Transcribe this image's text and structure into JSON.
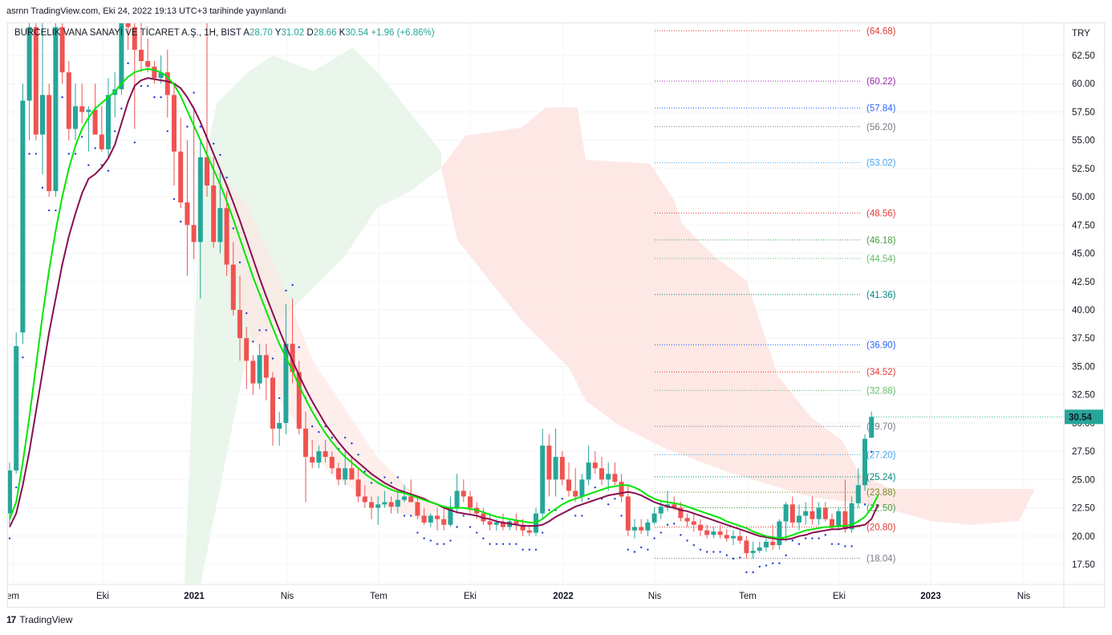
{
  "header": {
    "publish_line": "asrnn TradingView.com, Eki 24, 2022 19:13 UTC+3 tarihinde yayınlandı"
  },
  "legend": {
    "symbol": "BURCELIK VANA SANAYİ VE TİCARET A.Ş., 1H, BIST",
    "open_label": "A",
    "open": "28.70",
    "high_label": "Y",
    "high": "31.02",
    "low_label": "D",
    "low": "28.66",
    "close_label": "K",
    "close": "30.54",
    "change": "+1.96 (+6.86%)"
  },
  "footer": {
    "brand": "TradingView",
    "logo_glyph": "17"
  },
  "colors": {
    "up": "#26a69a",
    "down": "#ef5350",
    "fast_ma": "#00e600",
    "slow_ma": "#880e4f",
    "sar": "#1e3cd6",
    "cloud_bull": "#e8f5e9",
    "cloud_bear": "#fde4e1"
  },
  "chart_data": {
    "type": "candlestick",
    "currency": "TRY",
    "y_ticks": [
      "62.50",
      "60.00",
      "57.50",
      "55.00",
      "52.50",
      "50.00",
      "47.50",
      "45.00",
      "42.50",
      "40.00",
      "37.50",
      "35.00",
      "32.50",
      "30.00",
      "27.50",
      "25.00",
      "22.50",
      "20.00",
      "17.50"
    ],
    "x_ticks": [
      "em",
      "Eki",
      "2021",
      "Nis",
      "Tem",
      "Eki",
      "2022",
      "Nis",
      "Tem",
      "Eki",
      "2023",
      "Nis"
    ],
    "last_price": "30.54",
    "ylim": [
      16.0,
      65.5
    ],
    "fib_levels": [
      {
        "value": 64.68,
        "label": "(64.68)",
        "color": "#e53935"
      },
      {
        "value": 60.22,
        "label": "(60.22)",
        "color": "#9c27b0"
      },
      {
        "value": 57.84,
        "label": "(57.84)",
        "color": "#2962ff"
      },
      {
        "value": 56.2,
        "label": "(56.20)",
        "color": "#787b86"
      },
      {
        "value": 53.02,
        "label": "(53.02)",
        "color": "#42a5f5"
      },
      {
        "value": 48.56,
        "label": "(48.56)",
        "color": "#e53935"
      },
      {
        "value": 46.18,
        "label": "(46.18)",
        "color": "#43a047"
      },
      {
        "value": 44.54,
        "label": "(44.54)",
        "color": "#66bb6a"
      },
      {
        "value": 41.36,
        "label": "(41.36)",
        "color": "#00897b"
      },
      {
        "value": 36.9,
        "label": "(36.90)",
        "color": "#2962ff"
      },
      {
        "value": 34.52,
        "label": "(34.52)",
        "color": "#e53935"
      },
      {
        "value": 32.88,
        "label": "(32.88)",
        "color": "#66bb6a"
      },
      {
        "value": 29.7,
        "label": "(29.70)",
        "color": "#787b86"
      },
      {
        "value": 27.2,
        "label": "(27.20)",
        "color": "#42a5f5"
      },
      {
        "value": 25.24,
        "label": "(25.24)",
        "color": "#00897b"
      },
      {
        "value": 23.88,
        "label": "(23.88)",
        "color": "#7c8b2c"
      },
      {
        "value": 22.5,
        "label": "(22.50)",
        "color": "#43a047"
      },
      {
        "value": 20.8,
        "label": "(20.80)",
        "color": "#e53935"
      },
      {
        "value": 18.04,
        "label": "(18.04)",
        "color": "#787b86"
      }
    ],
    "candles": [
      {
        "o": 22.0,
        "h": 26.5,
        "l": 21.0,
        "c": 25.8
      },
      {
        "o": 25.8,
        "h": 38.0,
        "l": 25.5,
        "c": 36.8
      },
      {
        "o": 38.0,
        "h": 60.0,
        "l": 37.0,
        "c": 58.5
      },
      {
        "o": 58.5,
        "h": 70.0,
        "l": 55.0,
        "c": 65.0
      },
      {
        "o": 65.0,
        "h": 70.0,
        "l": 55.0,
        "c": 55.5
      },
      {
        "o": 55.5,
        "h": 66.0,
        "l": 52.0,
        "c": 59.0
      },
      {
        "o": 59.0,
        "h": 60.0,
        "l": 50.0,
        "c": 50.5
      },
      {
        "o": 50.5,
        "h": 67.0,
        "l": 50.0,
        "c": 65.0
      },
      {
        "o": 65.0,
        "h": 68.0,
        "l": 60.0,
        "c": 61.0
      },
      {
        "o": 61.0,
        "h": 62.0,
        "l": 55.0,
        "c": 56.0
      },
      {
        "o": 56.0,
        "h": 60.0,
        "l": 55.0,
        "c": 58.0
      },
      {
        "o": 58.0,
        "h": 60.0,
        "l": 56.5,
        "c": 57.5
      },
      {
        "o": 57.5,
        "h": 58.0,
        "l": 54.0,
        "c": 57.7
      },
      {
        "o": 57.7,
        "h": 60.0,
        "l": 55.5,
        "c": 55.5
      },
      {
        "o": 55.5,
        "h": 58.0,
        "l": 54.0,
        "c": 54.2
      },
      {
        "o": 54.2,
        "h": 60.5,
        "l": 53.5,
        "c": 59.0
      },
      {
        "o": 59.0,
        "h": 61.0,
        "l": 57.0,
        "c": 59.5
      },
      {
        "o": 59.5,
        "h": 70.0,
        "l": 59.0,
        "c": 66.0
      },
      {
        "o": 66.0,
        "h": 70.0,
        "l": 63.0,
        "c": 65.0
      },
      {
        "o": 65.0,
        "h": 67.0,
        "l": 56.0,
        "c": 63.0
      },
      {
        "o": 63.0,
        "h": 66.0,
        "l": 61.0,
        "c": 62.0
      },
      {
        "o": 62.0,
        "h": 64.0,
        "l": 61.0,
        "c": 61.5
      },
      {
        "o": 61.5,
        "h": 62.0,
        "l": 60.0,
        "c": 60.5
      },
      {
        "o": 60.5,
        "h": 62.5,
        "l": 60.0,
        "c": 61.0
      },
      {
        "o": 61.0,
        "h": 63.0,
        "l": 57.0,
        "c": 59.0
      },
      {
        "o": 59.0,
        "h": 60.0,
        "l": 51.0,
        "c": 54.0
      },
      {
        "o": 54.0,
        "h": 57.0,
        "l": 49.0,
        "c": 49.5
      },
      {
        "o": 49.5,
        "h": 55.0,
        "l": 43.0,
        "c": 47.5
      },
      {
        "o": 47.5,
        "h": 58.0,
        "l": 44.5,
        "c": 46.0
      },
      {
        "o": 46.0,
        "h": 55.0,
        "l": 41.0,
        "c": 53.5
      },
      {
        "o": 53.5,
        "h": 70.0,
        "l": 50.0,
        "c": 51.0
      },
      {
        "o": 51.0,
        "h": 53.5,
        "l": 45.5,
        "c": 46.0
      },
      {
        "o": 46.0,
        "h": 52.5,
        "l": 45.0,
        "c": 49.0
      },
      {
        "o": 49.0,
        "h": 50.5,
        "l": 43.0,
        "c": 44.0
      },
      {
        "o": 44.0,
        "h": 46.0,
        "l": 39.5,
        "c": 40.0
      },
      {
        "o": 40.0,
        "h": 43.0,
        "l": 35.5,
        "c": 37.5
      },
      {
        "o": 37.5,
        "h": 38.5,
        "l": 33.0,
        "c": 35.5
      },
      {
        "o": 35.5,
        "h": 36.0,
        "l": 32.5,
        "c": 33.5
      },
      {
        "o": 33.5,
        "h": 37.0,
        "l": 33.0,
        "c": 36.0
      },
      {
        "o": 36.0,
        "h": 37.0,
        "l": 32.0,
        "c": 34.0
      },
      {
        "o": 34.0,
        "h": 34.5,
        "l": 28.0,
        "c": 29.5
      },
      {
        "o": 29.5,
        "h": 31.0,
        "l": 28.0,
        "c": 30.0
      },
      {
        "o": 30.0,
        "h": 40.5,
        "l": 29.0,
        "c": 37.0
      },
      {
        "o": 37.0,
        "h": 41.0,
        "l": 33.5,
        "c": 34.5
      },
      {
        "o": 34.5,
        "h": 35.5,
        "l": 29.0,
        "c": 29.5
      },
      {
        "o": 29.5,
        "h": 31.0,
        "l": 23.0,
        "c": 27.0
      },
      {
        "o": 27.0,
        "h": 28.5,
        "l": 26.0,
        "c": 26.5
      },
      {
        "o": 26.5,
        "h": 28.0,
        "l": 26.0,
        "c": 27.5
      },
      {
        "o": 27.5,
        "h": 28.5,
        "l": 26.5,
        "c": 27.0
      },
      {
        "o": 27.0,
        "h": 27.5,
        "l": 25.5,
        "c": 26.0
      },
      {
        "o": 26.0,
        "h": 26.5,
        "l": 24.5,
        "c": 25.0
      },
      {
        "o": 25.0,
        "h": 27.5,
        "l": 24.5,
        "c": 26.0
      },
      {
        "o": 26.0,
        "h": 27.0,
        "l": 25.0,
        "c": 25.0
      },
      {
        "o": 25.0,
        "h": 26.0,
        "l": 23.0,
        "c": 23.5
      },
      {
        "o": 23.5,
        "h": 24.5,
        "l": 22.5,
        "c": 23.0
      },
      {
        "o": 23.0,
        "h": 23.5,
        "l": 21.5,
        "c": 22.5
      },
      {
        "o": 22.5,
        "h": 23.5,
        "l": 21.0,
        "c": 22.8
      },
      {
        "o": 22.8,
        "h": 24.0,
        "l": 22.5,
        "c": 23.0
      },
      {
        "o": 23.0,
        "h": 23.5,
        "l": 22.0,
        "c": 22.6
      },
      {
        "o": 22.6,
        "h": 24.0,
        "l": 22.0,
        "c": 23.2
      },
      {
        "o": 23.2,
        "h": 24.5,
        "l": 23.0,
        "c": 23.5
      },
      {
        "o": 23.5,
        "h": 25.0,
        "l": 23.0,
        "c": 23.0
      },
      {
        "o": 23.0,
        "h": 23.5,
        "l": 21.5,
        "c": 21.8
      },
      {
        "o": 21.8,
        "h": 22.5,
        "l": 21.0,
        "c": 21.2
      },
      {
        "o": 21.2,
        "h": 22.0,
        "l": 20.8,
        "c": 21.8
      },
      {
        "o": 21.8,
        "h": 22.5,
        "l": 20.5,
        "c": 21.5
      },
      {
        "o": 21.5,
        "h": 22.5,
        "l": 20.5,
        "c": 21.0
      },
      {
        "o": 21.0,
        "h": 23.5,
        "l": 20.8,
        "c": 22.5
      },
      {
        "o": 22.5,
        "h": 25.5,
        "l": 22.0,
        "c": 24.0
      },
      {
        "o": 24.0,
        "h": 25.0,
        "l": 23.0,
        "c": 23.5
      },
      {
        "o": 23.5,
        "h": 24.0,
        "l": 22.0,
        "c": 22.5
      },
      {
        "o": 22.5,
        "h": 23.0,
        "l": 21.5,
        "c": 22.0
      },
      {
        "o": 22.0,
        "h": 22.5,
        "l": 21.0,
        "c": 21.3
      },
      {
        "o": 21.3,
        "h": 22.0,
        "l": 20.5,
        "c": 21.0
      },
      {
        "o": 21.0,
        "h": 21.5,
        "l": 20.5,
        "c": 21.2
      },
      {
        "o": 21.2,
        "h": 22.0,
        "l": 20.5,
        "c": 20.8
      },
      {
        "o": 20.8,
        "h": 21.5,
        "l": 20.5,
        "c": 21.3
      },
      {
        "o": 21.3,
        "h": 22.0,
        "l": 20.5,
        "c": 21.0
      },
      {
        "o": 21.0,
        "h": 21.5,
        "l": 20.0,
        "c": 20.5
      },
      {
        "o": 20.5,
        "h": 21.0,
        "l": 20.0,
        "c": 20.3
      },
      {
        "o": 20.3,
        "h": 22.5,
        "l": 20.0,
        "c": 22.0
      },
      {
        "o": 22.0,
        "h": 29.5,
        "l": 21.5,
        "c": 28.0
      },
      {
        "o": 28.0,
        "h": 29.0,
        "l": 23.5,
        "c": 25.0
      },
      {
        "o": 25.0,
        "h": 29.5,
        "l": 23.5,
        "c": 27.0
      },
      {
        "o": 27.0,
        "h": 27.5,
        "l": 24.5,
        "c": 25.0
      },
      {
        "o": 25.0,
        "h": 26.5,
        "l": 23.5,
        "c": 24.0
      },
      {
        "o": 24.0,
        "h": 26.0,
        "l": 23.0,
        "c": 23.5
      },
      {
        "o": 23.5,
        "h": 25.5,
        "l": 23.0,
        "c": 25.0
      },
      {
        "o": 25.0,
        "h": 28.0,
        "l": 24.5,
        "c": 26.5
      },
      {
        "o": 26.5,
        "h": 27.5,
        "l": 25.5,
        "c": 26.0
      },
      {
        "o": 26.0,
        "h": 27.0,
        "l": 24.5,
        "c": 25.0
      },
      {
        "o": 25.0,
        "h": 26.5,
        "l": 24.0,
        "c": 25.5
      },
      {
        "o": 25.5,
        "h": 26.5,
        "l": 24.5,
        "c": 24.8
      },
      {
        "o": 24.8,
        "h": 25.5,
        "l": 23.0,
        "c": 23.5
      },
      {
        "o": 23.5,
        "h": 24.5,
        "l": 20.0,
        "c": 20.5
      },
      {
        "o": 20.5,
        "h": 21.5,
        "l": 19.8,
        "c": 20.8
      },
      {
        "o": 20.8,
        "h": 21.5,
        "l": 20.2,
        "c": 20.5
      },
      {
        "o": 20.5,
        "h": 21.5,
        "l": 20.0,
        "c": 21.2
      },
      {
        "o": 21.2,
        "h": 22.5,
        "l": 21.0,
        "c": 22.0
      },
      {
        "o": 22.0,
        "h": 23.0,
        "l": 21.5,
        "c": 22.6
      },
      {
        "o": 22.6,
        "h": 24.0,
        "l": 22.2,
        "c": 22.8
      },
      {
        "o": 22.8,
        "h": 23.5,
        "l": 22.3,
        "c": 22.5
      },
      {
        "o": 22.5,
        "h": 23.0,
        "l": 21.3,
        "c": 21.6
      },
      {
        "o": 21.6,
        "h": 22.0,
        "l": 20.8,
        "c": 21.3
      },
      {
        "o": 21.3,
        "h": 22.0,
        "l": 20.4,
        "c": 21.0
      },
      {
        "o": 21.0,
        "h": 21.5,
        "l": 20.0,
        "c": 20.5
      },
      {
        "o": 20.5,
        "h": 21.0,
        "l": 19.8,
        "c": 20.1
      },
      {
        "o": 20.1,
        "h": 20.8,
        "l": 19.8,
        "c": 20.4
      },
      {
        "o": 20.4,
        "h": 21.0,
        "l": 19.8,
        "c": 20.1
      },
      {
        "o": 20.1,
        "h": 20.6,
        "l": 19.5,
        "c": 19.8
      },
      {
        "o": 19.8,
        "h": 20.5,
        "l": 19.2,
        "c": 20.0
      },
      {
        "o": 20.0,
        "h": 20.5,
        "l": 19.3,
        "c": 19.6
      },
      {
        "o": 19.6,
        "h": 20.0,
        "l": 18.0,
        "c": 18.5
      },
      {
        "o": 18.5,
        "h": 19.5,
        "l": 18.0,
        "c": 18.7
      },
      {
        "o": 18.7,
        "h": 19.5,
        "l": 18.5,
        "c": 19.0
      },
      {
        "o": 19.0,
        "h": 19.8,
        "l": 18.6,
        "c": 19.5
      },
      {
        "o": 19.5,
        "h": 21.0,
        "l": 18.8,
        "c": 19.2
      },
      {
        "o": 19.2,
        "h": 21.5,
        "l": 18.8,
        "c": 21.3
      },
      {
        "o": 21.3,
        "h": 23.0,
        "l": 19.5,
        "c": 22.8
      },
      {
        "o": 22.8,
        "h": 23.5,
        "l": 20.8,
        "c": 21.2
      },
      {
        "o": 21.2,
        "h": 22.8,
        "l": 20.5,
        "c": 21.8
      },
      {
        "o": 21.8,
        "h": 23.0,
        "l": 21.0,
        "c": 22.2
      },
      {
        "o": 22.2,
        "h": 23.5,
        "l": 21.0,
        "c": 21.5
      },
      {
        "o": 21.5,
        "h": 23.0,
        "l": 21.0,
        "c": 22.5
      },
      {
        "o": 22.5,
        "h": 23.0,
        "l": 21.3,
        "c": 21.5
      },
      {
        "o": 21.5,
        "h": 22.0,
        "l": 20.5,
        "c": 20.8
      },
      {
        "o": 20.8,
        "h": 22.5,
        "l": 20.5,
        "c": 22.2
      },
      {
        "o": 22.2,
        "h": 25.0,
        "l": 20.3,
        "c": 20.6
      },
      {
        "o": 20.6,
        "h": 23.5,
        "l": 20.3,
        "c": 22.9
      },
      {
        "o": 22.9,
        "h": 26.0,
        "l": 22.5,
        "c": 24.5
      },
      {
        "o": 24.5,
        "h": 29.0,
        "l": 24.0,
        "c": 28.6
      },
      {
        "o": 28.7,
        "h": 31.02,
        "l": 28.66,
        "c": 30.54
      }
    ],
    "fast_ma": [
      21.5,
      23.0,
      26.5,
      30.5,
      35.0,
      39.5,
      43.5,
      47.0,
      50.0,
      52.5,
      54.5,
      56.0,
      57.0,
      57.8,
      58.3,
      58.8,
      59.3,
      60.0,
      60.6,
      61.0,
      61.2,
      61.3,
      61.2,
      61.0,
      60.6,
      59.9,
      58.9,
      57.6,
      56.3,
      55.0,
      53.7,
      52.4,
      51.1,
      49.6,
      48.0,
      46.3,
      44.6,
      42.9,
      41.4,
      39.9,
      38.4,
      37.0,
      35.8,
      34.6,
      33.3,
      32.1,
      31.0,
      30.0,
      29.1,
      28.3,
      27.6,
      27.0,
      26.5,
      26.0,
      25.5,
      25.1,
      24.7,
      24.4,
      24.1,
      23.9,
      23.8,
      23.6,
      23.4,
      23.2,
      23.0,
      22.8,
      22.6,
      22.5,
      22.5,
      22.5,
      22.4,
      22.3,
      22.1,
      21.9,
      21.7,
      21.6,
      21.5,
      21.4,
      21.3,
      21.2,
      21.2,
      21.5,
      22.0,
      22.4,
      22.8,
      23.1,
      23.3,
      23.5,
      23.7,
      23.9,
      24.1,
      24.3,
      24.4,
      24.5,
      24.5,
      24.3,
      24.0,
      23.6,
      23.3,
      23.1,
      23.0,
      22.9,
      22.8,
      22.6,
      22.4,
      22.2,
      22.0,
      21.8,
      21.6,
      21.3,
      21.1,
      20.9,
      20.7,
      20.4,
      20.2,
      20.0,
      19.9,
      19.8,
      19.9,
      20.1,
      20.3,
      20.5,
      20.6,
      20.7,
      20.8,
      20.8,
      20.9,
      20.9,
      21.0,
      21.3,
      21.7,
      22.5,
      23.6
    ],
    "slow_ma": [
      20.8,
      22.0,
      24.5,
      27.5,
      31.0,
      34.5,
      38.0,
      41.0,
      44.0,
      46.5,
      48.5,
      50.3,
      51.6,
      52.0,
      52.6,
      53.4,
      54.6,
      56.5,
      58.4,
      59.8,
      60.3,
      60.5,
      60.4,
      60.3,
      60.2,
      60.0,
      59.6,
      58.8,
      57.8,
      56.6,
      55.2,
      53.8,
      52.4,
      51.0,
      49.5,
      47.9,
      46.2,
      44.5,
      42.8,
      41.2,
      39.7,
      38.2,
      36.8,
      35.5,
      34.2,
      33.0,
      31.9,
      30.9,
      29.9,
      29.1,
      28.3,
      27.6,
      27.0,
      26.5,
      26.0,
      25.5,
      25.1,
      24.7,
      24.4,
      24.1,
      23.9,
      23.7,
      23.5,
      23.3,
      23.0,
      22.8,
      22.5,
      22.3,
      22.1,
      22.0,
      21.9,
      21.8,
      21.6,
      21.5,
      21.3,
      21.2,
      21.1,
      21.0,
      20.9,
      20.9,
      20.9,
      21.0,
      21.3,
      21.7,
      22.0,
      22.3,
      22.6,
      22.8,
      23.0,
      23.2,
      23.4,
      23.6,
      23.7,
      23.8,
      23.9,
      23.8,
      23.6,
      23.3,
      23.0,
      22.8,
      22.6,
      22.5,
      22.3,
      22.2,
      22.0,
      21.8,
      21.6,
      21.4,
      21.2,
      21.0,
      20.8,
      20.6,
      20.4,
      20.2,
      20.0,
      19.9,
      19.8,
      19.7,
      19.7,
      19.8,
      20.0,
      20.1,
      20.3,
      20.4,
      20.5,
      20.6,
      20.6,
      20.7,
      20.8,
      20.9,
      21.0,
      21.5,
      22.8
    ]
  }
}
